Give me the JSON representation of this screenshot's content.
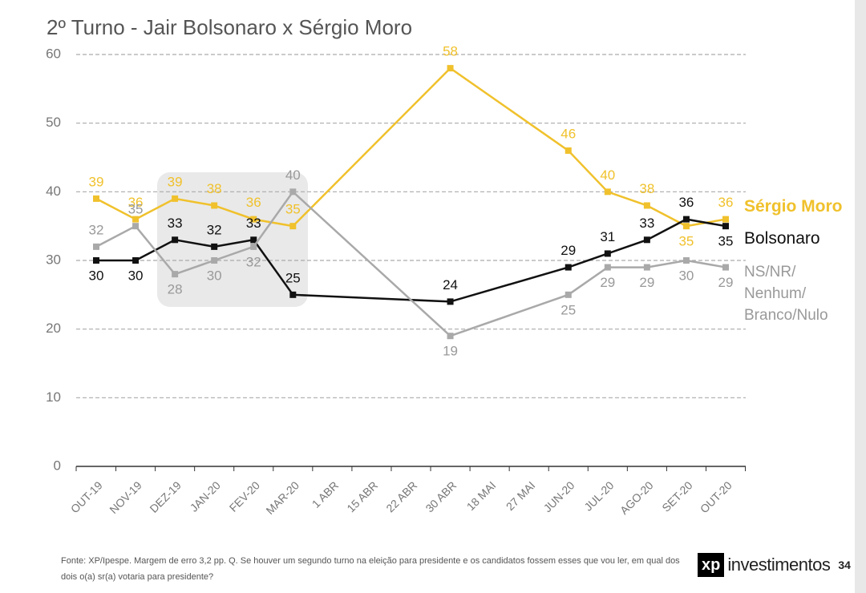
{
  "chart_data": {
    "type": "line",
    "title": "2º Turno - Jair Bolsonaro x Sérgio Moro",
    "categories": [
      "OUT-19",
      "NOV-19",
      "DEZ-19",
      "JAN-20",
      "FEV-20",
      "MAR-20",
      "1 ABR",
      "15 ABR",
      "22 ABR",
      "30 ABR",
      "18 MAI",
      "27 MAI",
      "JUN-20",
      "JUL-20",
      "AGO-20",
      "SET-20",
      "OUT-20"
    ],
    "series": [
      {
        "name": "Sérgio Moro",
        "color": "#f0c12c",
        "values": [
          39,
          36,
          39,
          38,
          36,
          35,
          null,
          null,
          null,
          58,
          null,
          null,
          46,
          40,
          38,
          35,
          36
        ]
      },
      {
        "name": "Bolsonaro",
        "color": "#111111",
        "values": [
          30,
          30,
          33,
          32,
          33,
          25,
          null,
          null,
          null,
          24,
          null,
          null,
          29,
          31,
          33,
          36,
          35
        ]
      },
      {
        "name": "NS/NR/ Nenhum/ Branco/Nulo",
        "color": "#a9a9a9",
        "values": [
          32,
          35,
          28,
          30,
          32,
          40,
          null,
          null,
          null,
          19,
          null,
          null,
          25,
          29,
          29,
          30,
          29
        ]
      }
    ],
    "connect_gaps": true,
    "ylim": [
      0,
      60
    ],
    "yticks": [
      0,
      10,
      20,
      30,
      40,
      50,
      60
    ],
    "grid": true,
    "source": "Fonte: XP/Ipespe. Margem de erro 3,2 pp. Q. Se houver um segundo turno na eleição para presidente e os candidatos fossem esses que vou ler, em qual dos dois o(a) sr(a) votaria para presidente?",
    "logo_mark": "xp",
    "logo_text": "investimentos",
    "page_number": "34"
  }
}
